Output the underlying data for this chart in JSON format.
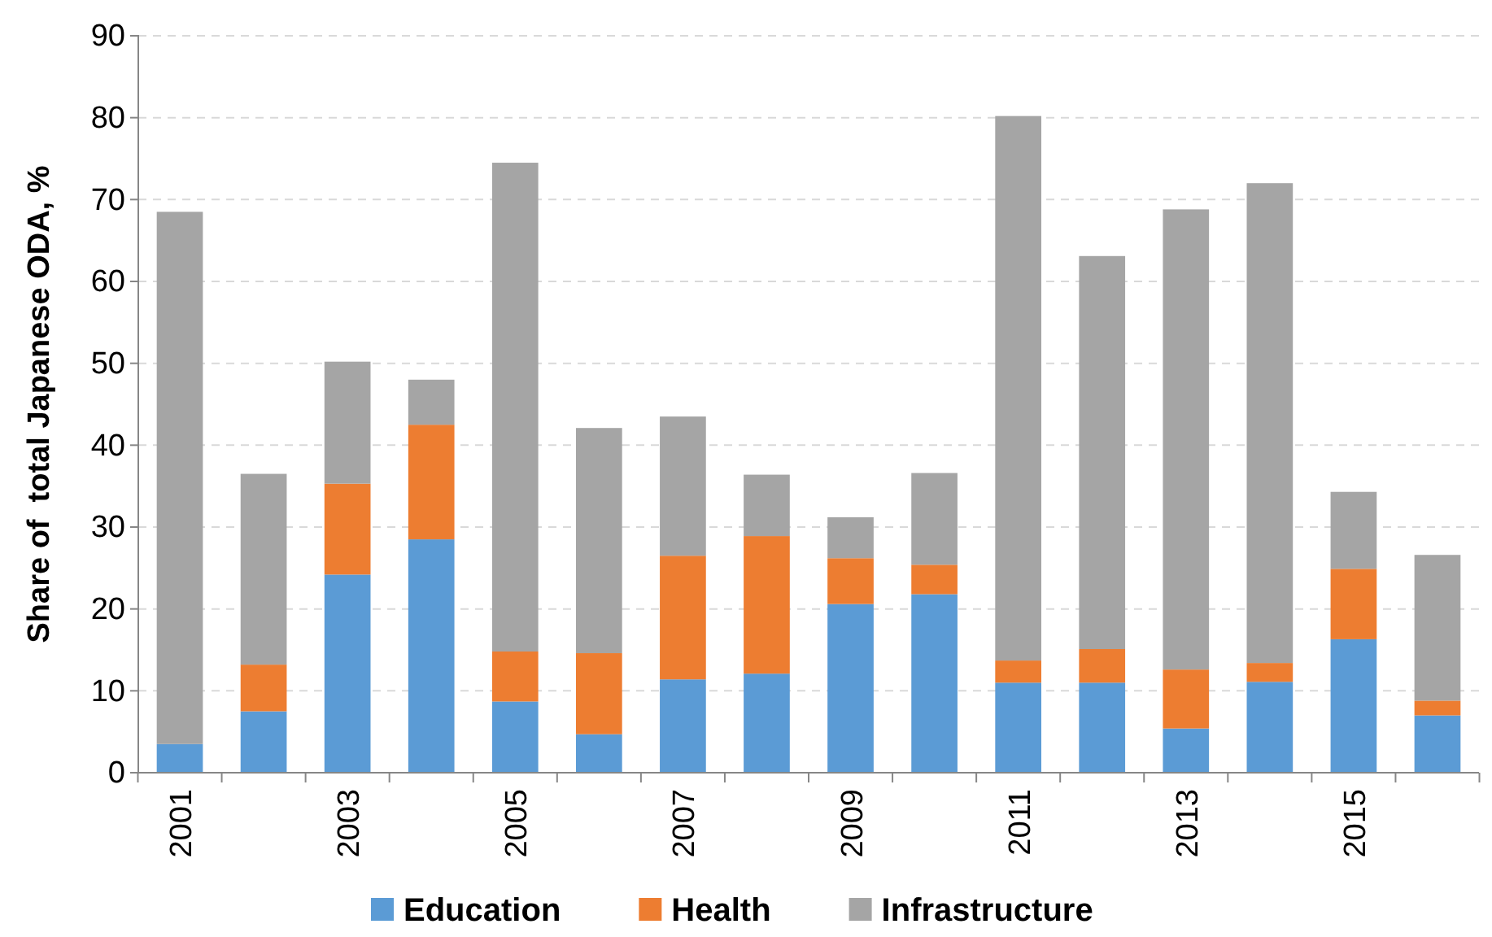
{
  "chart_data": {
    "type": "bar",
    "ylabel": "Share of  total Japanese ODA, %",
    "categories": [
      "2001",
      null,
      "2003",
      null,
      "2005",
      null,
      "2007",
      null,
      "2009",
      null,
      "2011",
      null,
      "2013",
      null,
      "2015",
      null
    ],
    "stacked": true,
    "series": [
      {
        "name": "Education",
        "color": "#5b9bd5",
        "values": [
          3.5,
          7.5,
          24.2,
          28.5,
          8.7,
          4.7,
          11.4,
          12.1,
          20.6,
          21.8,
          11,
          11,
          5.4,
          11.1,
          16.3,
          7
        ]
      },
      {
        "name": "Health",
        "color": "#ed7d31",
        "values": [
          0,
          5.7,
          11.1,
          14,
          6.1,
          9.9,
          15.1,
          16.8,
          5.6,
          3.6,
          2.7,
          4.1,
          7.2,
          2.3,
          8.6,
          1.8
        ]
      },
      {
        "name": "Infrastructure",
        "color": "#a5a5a5",
        "values": [
          65,
          23.3,
          14.9,
          5.5,
          59.7,
          27.5,
          17,
          7.5,
          5,
          11.2,
          66.5,
          48,
          56.2,
          58.6,
          9.4,
          17.8
        ]
      }
    ],
    "ylim": [
      0,
      90
    ],
    "yticks": [
      0,
      10,
      20,
      30,
      40,
      50,
      60,
      70,
      80,
      90
    ],
    "grid": "y",
    "legend": "bottom"
  }
}
